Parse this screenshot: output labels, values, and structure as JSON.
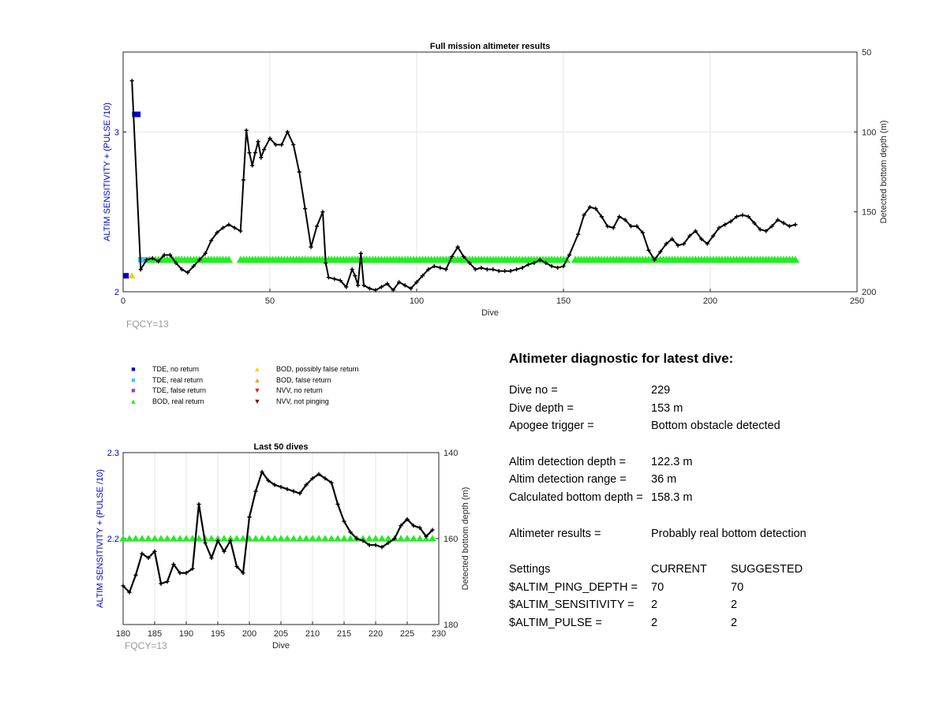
{
  "colors": {
    "tde_no_return": "#0000cc",
    "tde_real_return": "#33ccff",
    "tde_false_return": "#8844cc",
    "bod_real_return": "#22ee22",
    "bod_possibly_false": "#ffcc00",
    "bod_false_return": "#ff9900",
    "nvv_no_return": "#dd2222",
    "nvv_not_pinging": "#771111",
    "axis_left": "#0000cc",
    "depth_line": "#000000"
  },
  "chart_data": [
    {
      "type": "scatter",
      "title": "Full mission altimeter results",
      "xlabel": "Dive",
      "ylabel": "ALTIM SENSITIVITY + (PULSE /10)",
      "y2label": "Detected bottom depth (m)",
      "xlim": [
        0,
        250
      ],
      "ylim": [
        2,
        3.5
      ],
      "y2lim": [
        200,
        50
      ],
      "y2_reversed": true,
      "xticks": [
        0,
        50,
        100,
        150,
        200,
        250
      ],
      "yticks": [
        2,
        3
      ],
      "y2ticks": [
        50,
        100,
        150,
        200
      ],
      "grid": true,
      "annotation": "FQCY=13",
      "series": [
        {
          "name": "TDE, no return",
          "marker": "square",
          "points": [
            [
              1,
              2.1
            ],
            [
              4,
              3.11
            ],
            [
              5,
              3.11
            ]
          ]
        },
        {
          "name": "TDE, real return",
          "marker": "square",
          "points": [
            [
              6,
              2.2
            ],
            [
              7,
              2.2
            ],
            [
              8,
              2.2
            ]
          ]
        },
        {
          "name": "BOD, possibly false return",
          "marker": "triangle-up",
          "points": [
            [
              3,
              2.1
            ]
          ]
        },
        {
          "name": "BOD, real return",
          "marker": "triangle-up",
          "ranges": [
            [
              9,
              36
            ],
            [
              40,
              151
            ],
            [
              154,
              229
            ]
          ],
          "value": 2.2
        },
        {
          "name": "Detected bottom depth (m)",
          "axis": "right",
          "points": [
            [
              3,
              68
            ],
            [
              6,
              186
            ],
            [
              8,
              180
            ],
            [
              10,
              179
            ],
            [
              12,
              181
            ],
            [
              14,
              177
            ],
            [
              16,
              177
            ],
            [
              18,
              182
            ],
            [
              20,
              186
            ],
            [
              22,
              188
            ],
            [
              24,
              184
            ],
            [
              26,
              180
            ],
            [
              28,
              176
            ],
            [
              30,
              168
            ],
            [
              32,
              163
            ],
            [
              34,
              160
            ],
            [
              36,
              158
            ],
            [
              38,
              160
            ],
            [
              40,
              162
            ],
            [
              41,
              130
            ],
            [
              42,
              99
            ],
            [
              43,
              113
            ],
            [
              44,
              121
            ],
            [
              45,
              113
            ],
            [
              46,
              106
            ],
            [
              47,
              116
            ],
            [
              48,
              111
            ],
            [
              50,
              104
            ],
            [
              52,
              108
            ],
            [
              54,
              108
            ],
            [
              56,
              100
            ],
            [
              58,
              108
            ],
            [
              60,
              125
            ],
            [
              62,
              148
            ],
            [
              64,
              172
            ],
            [
              66,
              159
            ],
            [
              68,
              150
            ],
            [
              69,
              182
            ],
            [
              70,
              191
            ],
            [
              72,
              192
            ],
            [
              74,
              193
            ],
            [
              76,
              197
            ],
            [
              78,
              186
            ],
            [
              79,
              190
            ],
            [
              80,
              196
            ],
            [
              81,
              176
            ],
            [
              82,
              196
            ],
            [
              84,
              198
            ],
            [
              86,
              199
            ],
            [
              88,
              197
            ],
            [
              90,
              195
            ],
            [
              92,
              199
            ],
            [
              94,
              194
            ],
            [
              96,
              196
            ],
            [
              98,
              198
            ],
            [
              100,
              194
            ],
            [
              102,
              190
            ],
            [
              104,
              186
            ],
            [
              106,
              184
            ],
            [
              108,
              185
            ],
            [
              110,
              186
            ],
            [
              112,
              178
            ],
            [
              114,
              172
            ],
            [
              116,
              178
            ],
            [
              118,
              182
            ],
            [
              120,
              186
            ],
            [
              122,
              185
            ],
            [
              124,
              186
            ],
            [
              126,
              186
            ],
            [
              128,
              187
            ],
            [
              130,
              187
            ],
            [
              132,
              187
            ],
            [
              134,
              186
            ],
            [
              136,
              185
            ],
            [
              138,
              183
            ],
            [
              140,
              182
            ],
            [
              142,
              180
            ],
            [
              144,
              182
            ],
            [
              146,
              184
            ],
            [
              148,
              185
            ],
            [
              150,
              184
            ],
            [
              152,
              177
            ],
            [
              155,
              164
            ],
            [
              157,
              152
            ],
            [
              159,
              147
            ],
            [
              161,
              148
            ],
            [
              163,
              153
            ],
            [
              165,
              159
            ],
            [
              167,
              160
            ],
            [
              169,
              153
            ],
            [
              171,
              155
            ],
            [
              173,
              159
            ],
            [
              175,
              159
            ],
            [
              177,
              163
            ],
            [
              179,
              174
            ],
            [
              181,
              180
            ],
            [
              183,
              175
            ],
            [
              185,
              170
            ],
            [
              187,
              167
            ],
            [
              189,
              171
            ],
            [
              191,
              170
            ],
            [
              193,
              165
            ],
            [
              195,
              162
            ],
            [
              197,
              167
            ],
            [
              199,
              170
            ],
            [
              201,
              165
            ],
            [
              203,
              160
            ],
            [
              205,
              158
            ],
            [
              207,
              156
            ],
            [
              209,
              153
            ],
            [
              211,
              152
            ],
            [
              213,
              153
            ],
            [
              215,
              157
            ],
            [
              217,
              161
            ],
            [
              219,
              162
            ],
            [
              221,
              159
            ],
            [
              223,
              155
            ],
            [
              225,
              157
            ],
            [
              227,
              159
            ],
            [
              229,
              158
            ]
          ]
        }
      ]
    },
    {
      "type": "scatter",
      "title": "Last 50 dives",
      "xlabel": "Dive",
      "ylabel": "ALTIM SENSITIVITY + (PULSE /10)",
      "y2label": "Detected bottom depth (m)",
      "xlim": [
        180,
        230
      ],
      "ylim": [
        2.1,
        2.3
      ],
      "y2lim": [
        180,
        140
      ],
      "y2_reversed": true,
      "xticks": [
        180,
        185,
        190,
        195,
        200,
        205,
        210,
        215,
        220,
        225,
        230
      ],
      "yticks": [
        2.2,
        2.3
      ],
      "y2ticks": [
        140,
        160,
        180
      ],
      "grid": true,
      "annotation": "FQCY=13",
      "series": [
        {
          "name": "BOD, real return",
          "marker": "triangle-up",
          "ranges": [
            [
              180,
              229
            ]
          ],
          "value": 2.2
        },
        {
          "name": "Detected bottom depth (m)",
          "axis": "right",
          "points": [
            [
              180,
              171
            ],
            [
              181,
              172.5
            ],
            [
              182,
              168.5
            ],
            [
              183,
              163.5
            ],
            [
              184,
              164.5
            ],
            [
              185,
              163
            ],
            [
              186,
              170.5
            ],
            [
              187,
              170
            ],
            [
              188,
              166
            ],
            [
              189,
              168
            ],
            [
              190,
              168
            ],
            [
              191,
              167
            ],
            [
              192,
              152
            ],
            [
              193,
              161
            ],
            [
              194,
              164.5
            ],
            [
              195,
              160.5
            ],
            [
              196,
              163
            ],
            [
              197,
              160.5
            ],
            [
              198,
              166.5
            ],
            [
              199,
              168
            ],
            [
              200,
              155
            ],
            [
              201,
              149
            ],
            [
              202,
              144.5
            ],
            [
              203,
              146.5
            ],
            [
              204,
              147.5
            ],
            [
              205,
              148
            ],
            [
              206,
              148.5
            ],
            [
              207,
              149
            ],
            [
              208,
              149.5
            ],
            [
              209,
              147.5
            ],
            [
              210,
              146
            ],
            [
              211,
              145
            ],
            [
              212,
              146
            ],
            [
              213,
              147
            ],
            [
              214,
              152
            ],
            [
              215,
              156
            ],
            [
              216,
              158.5
            ],
            [
              217,
              160
            ],
            [
              218,
              160.5
            ],
            [
              219,
              161.5
            ],
            [
              220,
              161.5
            ],
            [
              221,
              162
            ],
            [
              222,
              161
            ],
            [
              223,
              160
            ],
            [
              224,
              157
            ],
            [
              225,
              155.5
            ],
            [
              226,
              157
            ],
            [
              227,
              157.5
            ],
            [
              228,
              159.5
            ],
            [
              229,
              158
            ]
          ]
        }
      ]
    }
  ],
  "legend": {
    "items": [
      {
        "label": "TDE, no return",
        "shape": "■",
        "color": "#0000cc"
      },
      {
        "label": "TDE, real return",
        "shape": "■",
        "color": "#33ccff"
      },
      {
        "label": "TDE, false return",
        "shape": "■",
        "color": "#8844cc"
      },
      {
        "label": "BOD, real return",
        "shape": "▲",
        "color": "#22ee22"
      },
      {
        "label": "BOD, possibly false return",
        "shape": "▲",
        "color": "#ffcc00"
      },
      {
        "label": "BOD, false return",
        "shape": "▲",
        "color": "#ff9900"
      },
      {
        "label": "NVV, no return",
        "shape": "▼",
        "color": "#dd2222"
      },
      {
        "label": "NVV, not pinging",
        "shape": "▼",
        "color": "#771111"
      }
    ]
  },
  "diagnostic": {
    "title": "Altimeter diagnostic for latest dive:",
    "dive_no_label": "Dive no =",
    "dive_no": "229",
    "dive_depth_label": "Dive depth =",
    "dive_depth": "153 m",
    "apogee_label": "Apogee trigger =",
    "apogee": "Bottom obstacle detected",
    "det_depth_label": "Altim detection depth =",
    "det_depth": "122.3 m",
    "det_range_label": "Altim detection range =",
    "det_range": "36 m",
    "calc_depth_label": "Calculated bottom depth =",
    "calc_depth": "158.3 m",
    "results_label": "Altimeter results =",
    "results": "Probably real bottom detection",
    "settings_label": "Settings",
    "current_label": "CURRENT",
    "suggested_label": "SUGGESTED",
    "settings": [
      {
        "name": "$ALTIM_PING_DEPTH =",
        "current": "70",
        "suggested": "70"
      },
      {
        "name": "$ALTIM_SENSITIVITY =",
        "current": "2",
        "suggested": "2"
      },
      {
        "name": "$ALTIM_PULSE =",
        "current": "2",
        "suggested": "2"
      }
    ]
  }
}
